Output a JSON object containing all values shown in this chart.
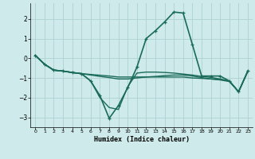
{
  "xlabel": "Humidex (Indice chaleur)",
  "xlim": [
    -0.5,
    23.5
  ],
  "ylim": [
    -3.5,
    2.8
  ],
  "xticks": [
    0,
    1,
    2,
    3,
    4,
    5,
    6,
    7,
    8,
    9,
    10,
    11,
    12,
    13,
    14,
    15,
    16,
    17,
    18,
    19,
    20,
    21,
    22,
    23
  ],
  "yticks": [
    -3,
    -2,
    -1,
    0,
    1,
    2
  ],
  "bg_color": "#ceeaea",
  "grid_color": "#aed0d0",
  "line_color": "#1a6b5a",
  "lines": [
    {
      "x": [
        0,
        1,
        2,
        3,
        4,
        5,
        6,
        7,
        8,
        9,
        10,
        11,
        12,
        13,
        14,
        15,
        16,
        17,
        18,
        19,
        20,
        21,
        22,
        23
      ],
      "y": [
        0.15,
        -0.3,
        -0.6,
        -0.65,
        -0.72,
        -0.78,
        -1.15,
        -1.9,
        -3.05,
        -2.4,
        -1.5,
        -0.45,
        1.0,
        1.4,
        1.85,
        2.35,
        2.3,
        0.7,
        -0.9,
        -0.9,
        -0.9,
        -1.15,
        -1.7,
        -0.65
      ],
      "marker": true,
      "lw": 1.2
    },
    {
      "x": [
        0,
        1,
        2,
        3,
        4,
        5,
        6,
        7,
        8,
        9,
        10,
        11,
        12,
        13,
        14,
        15,
        16,
        17,
        18,
        19,
        20,
        21,
        22,
        23
      ],
      "y": [
        0.15,
        -0.3,
        -0.6,
        -0.65,
        -0.72,
        -0.78,
        -1.15,
        -2.0,
        -2.5,
        -2.6,
        -1.45,
        -0.75,
        -0.7,
        -0.7,
        -0.72,
        -0.75,
        -0.8,
        -0.85,
        -0.92,
        -0.97,
        -1.05,
        -1.15,
        -1.7,
        -0.65
      ],
      "marker": false,
      "lw": 1.0
    },
    {
      "x": [
        0,
        1,
        2,
        3,
        4,
        5,
        6,
        7,
        8,
        9,
        10,
        11,
        12,
        13,
        14,
        15,
        16,
        17,
        18,
        19,
        20,
        21,
        22,
        23
      ],
      "y": [
        0.15,
        -0.3,
        -0.6,
        -0.65,
        -0.72,
        -0.78,
        -0.82,
        -0.86,
        -0.9,
        -0.95,
        -0.95,
        -0.95,
        -0.95,
        -0.95,
        -0.95,
        -0.95,
        -0.95,
        -1.0,
        -1.02,
        -1.05,
        -1.08,
        -1.15,
        -1.7,
        -0.65
      ],
      "marker": false,
      "lw": 1.0
    },
    {
      "x": [
        0,
        1,
        2,
        3,
        4,
        5,
        6,
        7,
        8,
        9,
        10,
        11,
        12,
        13,
        14,
        15,
        16,
        17,
        18,
        19,
        20,
        21,
        22,
        23
      ],
      "y": [
        0.15,
        -0.3,
        -0.6,
        -0.65,
        -0.72,
        -0.78,
        -0.85,
        -0.92,
        -0.98,
        -1.05,
        -1.05,
        -1.0,
        -0.95,
        -0.92,
        -0.88,
        -0.85,
        -0.85,
        -0.9,
        -0.98,
        -1.05,
        -1.1,
        -1.18,
        -1.7,
        -0.65
      ],
      "marker": false,
      "lw": 1.0
    }
  ]
}
